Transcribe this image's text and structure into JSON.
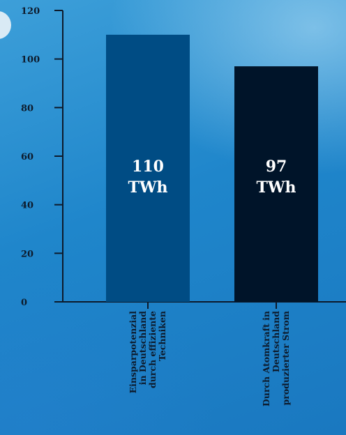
{
  "chart_data": {
    "type": "bar",
    "title": "",
    "xlabel": "",
    "ylabel": "",
    "ylim": [
      0,
      120
    ],
    "yticks": [
      0,
      20,
      40,
      60,
      80,
      100,
      120
    ],
    "grid": false,
    "categories": [
      [
        "Einsparpotenzial",
        "in Deutschland",
        "durch effiziente",
        "Techniken"
      ],
      [
        "Durch Atomkraft in",
        "Deutschland",
        "produzierter Strom"
      ]
    ],
    "values": [
      110,
      97
    ],
    "bar_labels": [
      [
        "110",
        "TWh"
      ],
      [
        "97",
        "TWh"
      ]
    ],
    "colors": [
      "#004c84",
      "#001429"
    ],
    "axis_color": "#0d1a2b"
  }
}
